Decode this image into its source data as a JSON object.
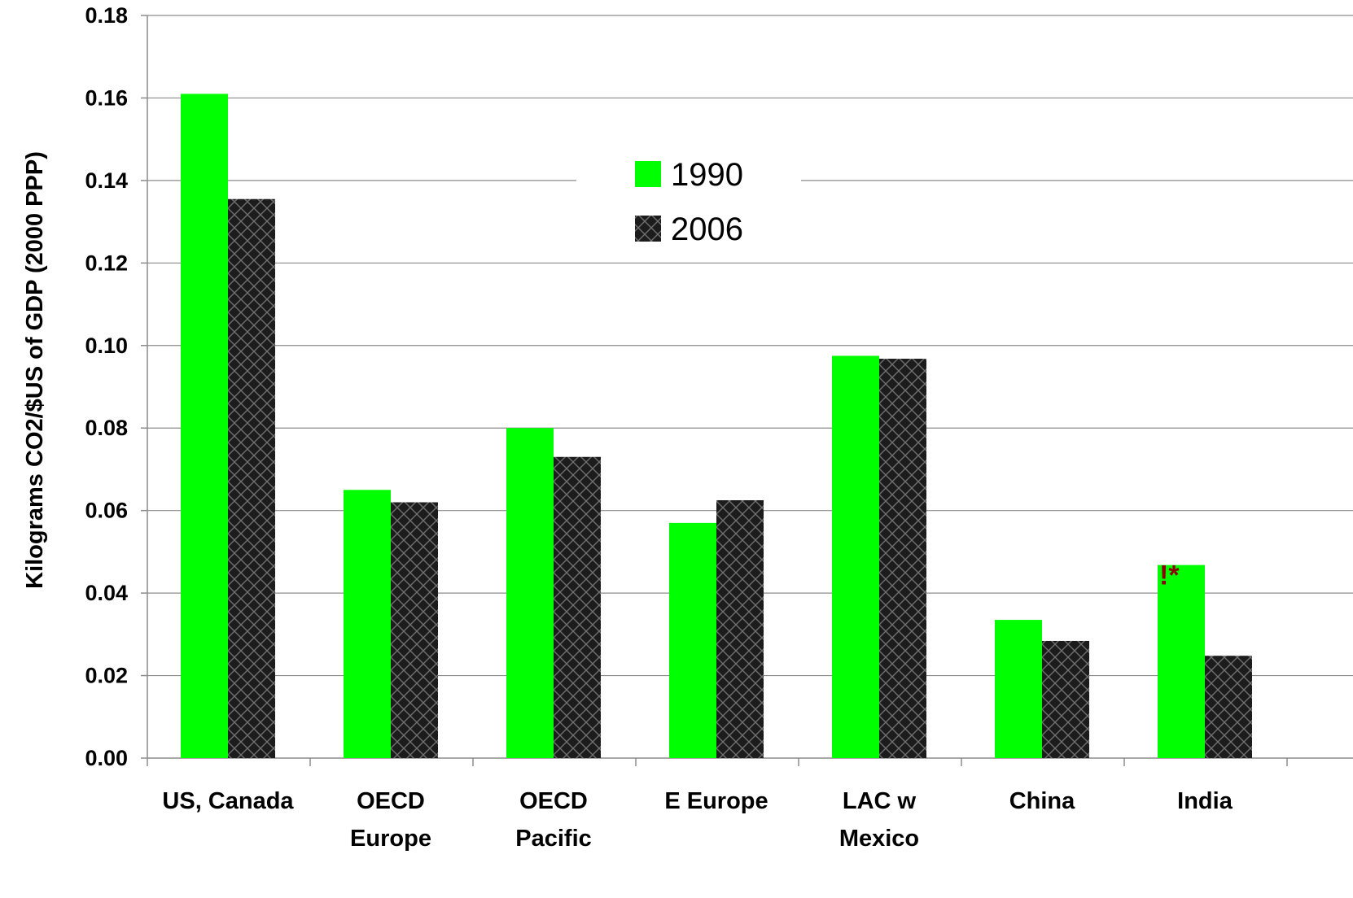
{
  "chart_data": {
    "type": "bar",
    "ylabel": "Kilograms CO2/$US of GDP (2000 PPP)",
    "xlabel": "",
    "ylim": [
      0,
      0.18
    ],
    "yticks": [
      "0.00",
      "0.02",
      "0.04",
      "0.06",
      "0.08",
      "0.10",
      "0.12",
      "0.14",
      "0.16",
      "0.18"
    ],
    "categories": [
      [
        "US, Canada"
      ],
      [
        "OECD",
        "Europe"
      ],
      [
        "OECD",
        "Pacific"
      ],
      [
        "E Europe"
      ],
      [
        "LAC w",
        "Mexico"
      ],
      [
        "China"
      ],
      [
        "India"
      ]
    ],
    "series": [
      {
        "name": "1990",
        "color": "#00ff00",
        "pattern": "solid",
        "values": [
          0.161,
          0.065,
          0.08,
          0.057,
          0.0975,
          0.0335,
          0.0468
        ]
      },
      {
        "name": "2006",
        "color": "#404040",
        "pattern": "diamond-check",
        "values": [
          0.1355,
          0.062,
          0.073,
          0.0625,
          0.0968,
          0.0284,
          0.0248
        ]
      }
    ],
    "legend": {
      "placement": "top-center"
    },
    "annotations": [
      {
        "category": "India",
        "series": "1990",
        "text": "!*",
        "color": "#8b0000"
      }
    ],
    "grid": true
  }
}
